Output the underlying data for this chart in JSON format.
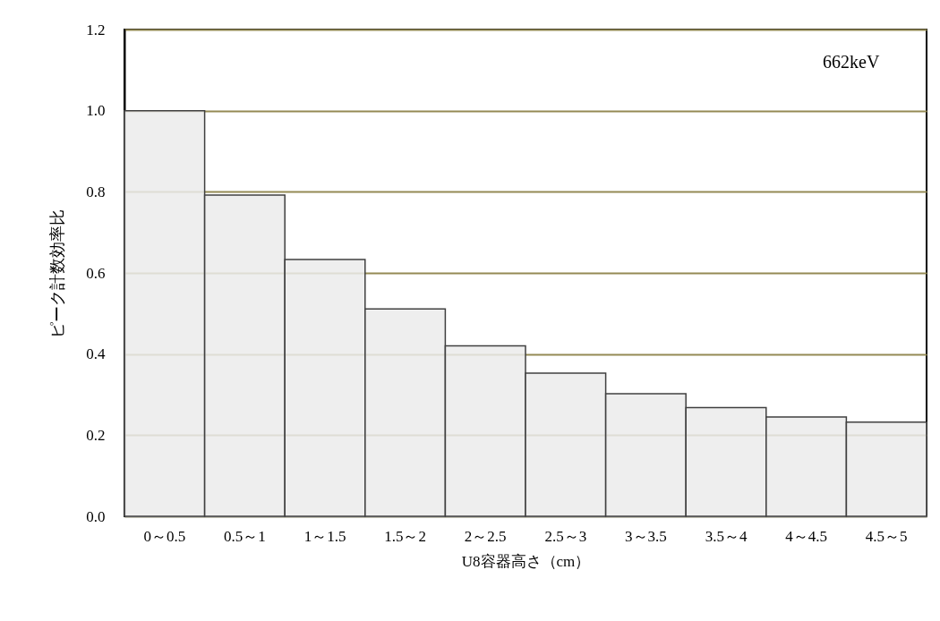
{
  "chart_data": {
    "type": "bar",
    "categories": [
      "0～0.5",
      "0.5～1",
      "1～1.5",
      "1.5～2",
      "2～2.5",
      "2.5～3",
      "3～3.5",
      "3.5～4",
      "4～4.5",
      "4.5～5"
    ],
    "values": [
      1.0,
      0.792,
      0.633,
      0.511,
      0.42,
      0.353,
      0.302,
      0.268,
      0.245,
      0.232
    ],
    "color": "#ebebeb",
    "xlabel": "U8容器高さ（cm）",
    "ylabel": "ピーク計数効率比",
    "ylim": [
      0,
      1.2
    ],
    "yticks": [
      {
        "value": 0,
        "label": "0.0"
      },
      {
        "value": 0.2,
        "label": "0.2"
      },
      {
        "value": 0.4,
        "label": "0.4"
      },
      {
        "value": 0.6,
        "label": "0.6"
      },
      {
        "value": 0.8,
        "label": "0.8"
      },
      {
        "value": 1.0,
        "label": "1.0"
      },
      {
        "value": 1.2,
        "label": "1.2"
      }
    ],
    "grid": "y",
    "annotations": [
      "662keV"
    ]
  }
}
